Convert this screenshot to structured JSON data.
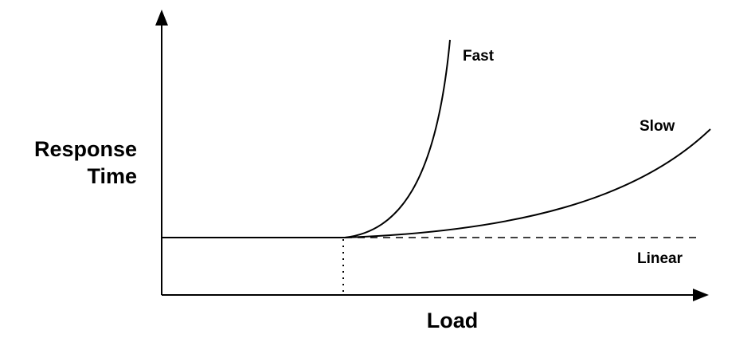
{
  "diagram": {
    "y_axis_label_line1": "Response",
    "y_axis_label_line2": "Time",
    "x_axis_label": "Load",
    "curves": {
      "fast": "Fast",
      "slow": "Slow",
      "linear": "Linear"
    }
  }
}
